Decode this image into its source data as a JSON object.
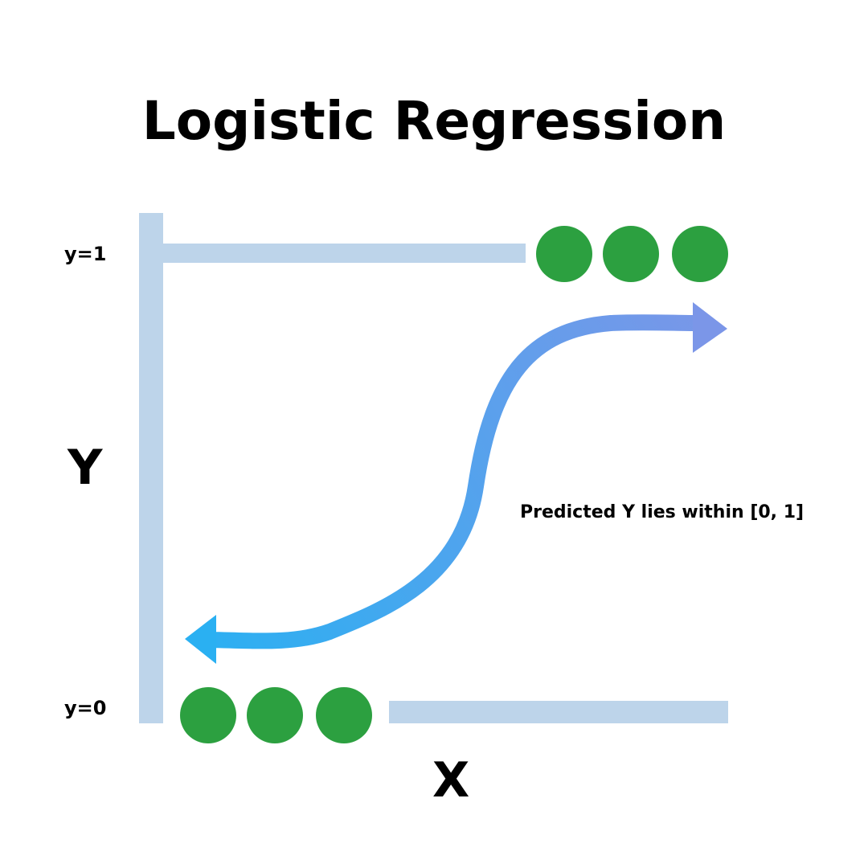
{
  "title": "Logistic Regression",
  "axes": {
    "y_axis_label": "Y",
    "x_axis_label": "X",
    "y_top_label": "y=1",
    "y_bottom_label": "y=0"
  },
  "annotation": "Predicted Y lies within [0, 1]",
  "points": {
    "class_1_count": 3,
    "class_0_count": 3
  },
  "colors": {
    "axis": "#bdd4ea",
    "point": "#2ca040",
    "curve_start": "#2ab0f2",
    "curve_end": "#7b96e8",
    "text": "#000000",
    "background": "#ffffff"
  }
}
